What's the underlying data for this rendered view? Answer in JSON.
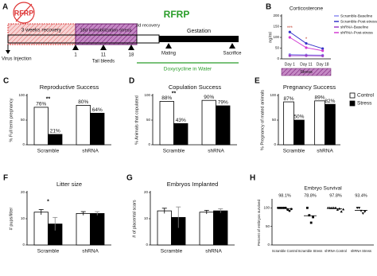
{
  "timeline": {
    "panel_label": "A",
    "knockdown_label": "RFRP",
    "target_label": "RFRP",
    "phases": [
      "3 weeks recovery",
      "18d immobilization stress",
      "3d recovery",
      "Gestation"
    ],
    "injection": "Virus Injection",
    "bleed_days": [
      "1",
      "11",
      "18"
    ],
    "bleeds_label": "Tail bleeds",
    "events": [
      "Mating",
      "Sacrifice"
    ],
    "treatment": "Doxycycline in Water"
  },
  "chart_data": [
    {
      "type": "line",
      "label": "B",
      "title": "Corticosterone",
      "y_label": "ng/ml",
      "categories": [
        "Day 1",
        "Day 11",
        "Day 18"
      ],
      "ylim": [
        0,
        200
      ],
      "yticks": [
        0,
        50,
        100,
        150,
        200
      ],
      "series": [
        {
          "name": "Scramble-Baseline",
          "color": "#8c8cf0",
          "values": [
            20,
            18,
            17
          ]
        },
        {
          "name": "Scramble-Post-stress",
          "color": "#3535c8",
          "values": [
            125,
            72,
            48
          ]
        },
        {
          "name": "shRNA-Baseline",
          "color": "#9a3dc8",
          "values": [
            15,
            15,
            14
          ]
        },
        {
          "name": "shRNA-Post-stress",
          "color": "#d23cd2",
          "values": [
            100,
            52,
            38
          ]
        }
      ],
      "annotations": [
        "***",
        "*"
      ],
      "band_label": "Stress"
    },
    {
      "type": "bar",
      "label": "C",
      "title": "Reproductive Success",
      "y_label": "% Full term pregnancy",
      "categories": [
        "Scramble",
        "shRNA"
      ],
      "ylim": [
        0,
        100
      ],
      "yticks": [
        0,
        50,
        100
      ],
      "series": [
        {
          "color": "#ffffff",
          "values": [
            76,
            80
          ],
          "value_labels": [
            "76%",
            "80%"
          ]
        },
        {
          "color": "#000000",
          "values": [
            21,
            64
          ],
          "value_labels": [
            "21%",
            "64%"
          ]
        }
      ],
      "annotations": [
        "**"
      ]
    },
    {
      "type": "bar",
      "label": "D",
      "title": "Copulation Success",
      "y_label": "% Animals that copulated",
      "categories": [
        "Scramble",
        "shRNA"
      ],
      "ylim": [
        0,
        100
      ],
      "yticks": [
        0,
        50,
        100
      ],
      "series": [
        {
          "color": "#ffffff",
          "values": [
            88,
            90
          ],
          "value_labels": [
            "88%",
            "90%"
          ]
        },
        {
          "color": "#000000",
          "values": [
            43,
            79
          ],
          "value_labels": [
            "43%",
            "79%"
          ]
        }
      ],
      "annotations": [
        "**"
      ]
    },
    {
      "type": "bar",
      "label": "E",
      "title": "Pregnancy Success",
      "y_label": "% Pregnancy of mated animals",
      "categories": [
        "Scramble",
        "shRNA"
      ],
      "ylim": [
        0,
        100
      ],
      "yticks": [
        0,
        50,
        100
      ],
      "legend": "upper right",
      "series": [
        {
          "name": "Control",
          "color": "#ffffff",
          "values": [
            87,
            89
          ],
          "value_labels": [
            "87%",
            "89%"
          ]
        },
        {
          "name": "Stress",
          "color": "#000000",
          "values": [
            50,
            82
          ],
          "value_labels": [
            "50%",
            "82%"
          ]
        }
      ]
    },
    {
      "type": "bar",
      "label": "F",
      "title": "Litter size",
      "y_label": "# pups/litter",
      "categories": [
        "Scramble",
        "shRNA"
      ],
      "ylim": [
        0,
        20
      ],
      "yticks": [
        0,
        10,
        20
      ],
      "series": [
        {
          "color": "#ffffff",
          "values": [
            12.5,
            12
          ],
          "errors": [
            1,
            0.7
          ]
        },
        {
          "color": "#000000",
          "values": [
            8,
            12
          ],
          "errors": [
            2.5,
            0.7
          ]
        }
      ],
      "annotations": [
        "*"
      ]
    },
    {
      "type": "bar",
      "label": "G",
      "title": "Embryos Implanted",
      "y_label": "# of placental scars",
      "categories": [
        "Scramble",
        "shRNA"
      ],
      "ylim": [
        0,
        20
      ],
      "yticks": [
        0,
        10,
        20
      ],
      "series": [
        {
          "color": "#ffffff",
          "values": [
            13,
            12.5
          ],
          "errors": [
            1,
            0.7
          ]
        },
        {
          "color": "#000000",
          "values": [
            10.5,
            13
          ],
          "errors": [
            4,
            0.8
          ]
        }
      ]
    },
    {
      "type": "scatter",
      "label": "H",
      "title": "Embryo Survival",
      "y_label": "Percent of embryos survived",
      "categories": [
        "Scramble Control",
        "Scramble Stress",
        "shRNA Control",
        "shRNA Stress"
      ],
      "ylim": [
        0,
        120
      ],
      "yticks": [
        0,
        50,
        100
      ],
      "points": [
        [
          100,
          100,
          100,
          100,
          100,
          95,
          92,
          97
        ],
        [
          100,
          80,
          60,
          75
        ],
        [
          100,
          100,
          100,
          100,
          100,
          95,
          98,
          90,
          96
        ],
        [
          100,
          100,
          92,
          85,
          90
        ]
      ],
      "values": [
        98.1,
        78.8,
        97.8,
        93.4
      ],
      "value_labels": [
        "98.1%",
        "78.8%",
        "97.8%",
        "93.4%"
      ]
    }
  ]
}
